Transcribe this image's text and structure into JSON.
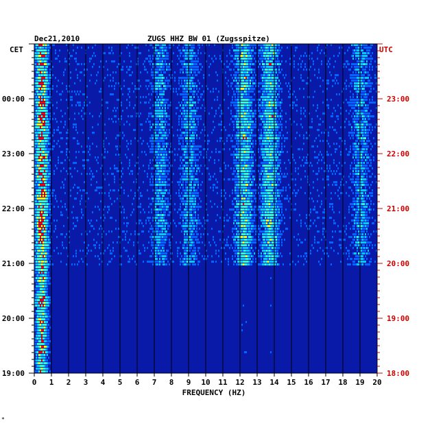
{
  "chart_data": {
    "type": "heatmap",
    "title": "ZUGS HHZ BW 01 (Zugsspitze)",
    "date": "Dec21,2010",
    "left_zone": "CET",
    "right_zone": "UTC",
    "xlabel": "FREQUENCY (HZ)",
    "x_ticks": [
      "0",
      "1",
      "2",
      "3",
      "4",
      "5",
      "6",
      "7",
      "8",
      "9",
      "10",
      "11",
      "12",
      "13",
      "14",
      "15",
      "16",
      "17",
      "18",
      "19",
      "20"
    ],
    "xlim": [
      0,
      20
    ],
    "cet_labels": [
      "00:00",
      "23:00",
      "22:00",
      "21:00",
      "20:00",
      "19:00"
    ],
    "utc_labels": [
      "23:00",
      "22:00",
      "21:00",
      "20:00",
      "19:00",
      "18:00"
    ],
    "footnote": "*",
    "colors": {
      "background": "#0a1aa8",
      "low": "#0000cc",
      "mid": "#00ccff",
      "high": "#ffff00",
      "peak": "#ff0000"
    },
    "energy_bands_hz": [
      {
        "center": 0.4,
        "strength": "high"
      },
      {
        "center": 7.3,
        "strength": "low"
      },
      {
        "center": 9.0,
        "strength": "low"
      },
      {
        "center": 12.2,
        "strength": "mid"
      },
      {
        "center": 13.7,
        "strength": "mid"
      },
      {
        "center": 19.0,
        "strength": "low"
      }
    ]
  }
}
